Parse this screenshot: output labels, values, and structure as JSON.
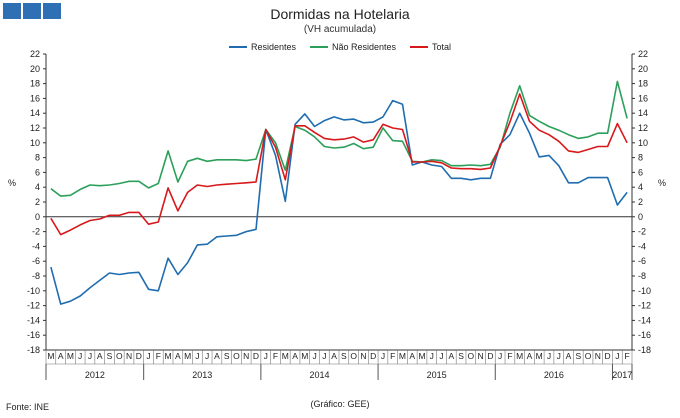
{
  "header": {
    "title": "Dormidas na Hotelaria",
    "subtitle": "(VH acumulada)"
  },
  "footer": {
    "source": "Fonte: INE",
    "credit": "(Gráfico: GEE)"
  },
  "colors": {
    "brand": "#2f6fb3",
    "residentes": "#1f6db0",
    "nao_residentes": "#2ca05a",
    "total": "#d7191c"
  },
  "chart_data": {
    "type": "line",
    "title": "Dormidas na Hotelaria",
    "subtitle": "(VH acumulada)",
    "ylabel": "%",
    "ylabel_right": "%",
    "ylim": [
      -18,
      22
    ],
    "yticks": [
      -18,
      -16,
      -14,
      -12,
      -10,
      -8,
      -6,
      -4,
      -2,
      0,
      2,
      4,
      6,
      8,
      10,
      12,
      14,
      16,
      18,
      20,
      22
    ],
    "grid": false,
    "legend_position": "top-center",
    "categories": [
      "M",
      "A",
      "M",
      "J",
      "J",
      "A",
      "S",
      "O",
      "N",
      "D",
      "J",
      "F",
      "M",
      "A",
      "M",
      "J",
      "J",
      "A",
      "S",
      "O",
      "N",
      "D",
      "J",
      "F",
      "M",
      "A",
      "M",
      "J",
      "J",
      "A",
      "S",
      "O",
      "N",
      "D",
      "J",
      "F",
      "M",
      "A",
      "M",
      "J",
      "J",
      "A",
      "S",
      "O",
      "N",
      "D",
      "J",
      "F",
      "M",
      "A",
      "M",
      "J",
      "J",
      "A",
      "S",
      "O",
      "N",
      "D",
      "J",
      "F"
    ],
    "years": [
      {
        "label": "2012",
        "start": 0,
        "end": 9
      },
      {
        "label": "2013",
        "start": 10,
        "end": 21
      },
      {
        "label": "2014",
        "start": 22,
        "end": 33
      },
      {
        "label": "2015",
        "start": 34,
        "end": 45
      },
      {
        "label": "2016",
        "start": 46,
        "end": 57
      },
      {
        "label": "2017",
        "start": 58,
        "end": 59
      }
    ],
    "series": [
      {
        "name": "Residentes",
        "color": "#1f6db0",
        "values": [
          -6.8,
          -11.8,
          -11.4,
          -10.7,
          -9.6,
          -8.6,
          -7.6,
          -7.8,
          -7.6,
          -7.5,
          -9.8,
          -10.0,
          -5.6,
          -7.8,
          -6.2,
          -3.8,
          -3.7,
          -2.7,
          -2.6,
          -2.5,
          -2.0,
          -1.7,
          11.8,
          8.3,
          2.1,
          12.5,
          13.9,
          12.2,
          13.0,
          13.5,
          13.1,
          13.2,
          12.7,
          12.8,
          13.5,
          15.7,
          15.2,
          7.0,
          7.4,
          7.0,
          6.8,
          5.2,
          5.2,
          5.0,
          5.2,
          5.2,
          9.8,
          11.1,
          14.0,
          11.3,
          8.1,
          8.3,
          6.9,
          4.6,
          4.6,
          5.3,
          5.3,
          5.3,
          1.6,
          3.3
        ]
      },
      {
        "name": "Não Residentes",
        "color": "#2ca05a",
        "values": [
          3.8,
          2.8,
          2.9,
          3.7,
          4.3,
          4.2,
          4.3,
          4.5,
          4.8,
          4.8,
          3.9,
          4.5,
          8.9,
          4.7,
          7.5,
          7.9,
          7.5,
          7.7,
          7.7,
          7.7,
          7.6,
          7.8,
          11.8,
          10.0,
          6.3,
          12.2,
          11.7,
          10.8,
          9.5,
          9.3,
          9.4,
          9.9,
          9.2,
          9.4,
          12.0,
          10.3,
          10.2,
          7.5,
          7.4,
          7.7,
          7.6,
          6.9,
          6.9,
          7.0,
          6.9,
          7.1,
          9.4,
          14.0,
          17.7,
          13.7,
          12.9,
          12.2,
          11.7,
          11.1,
          10.6,
          10.8,
          11.3,
          11.3,
          18.3,
          13.3
        ]
      },
      {
        "name": "Total",
        "color": "#d7191c",
        "values": [
          -0.2,
          -2.4,
          -1.8,
          -1.1,
          -0.5,
          -0.3,
          0.2,
          0.2,
          0.6,
          0.6,
          -1.0,
          -0.7,
          3.9,
          0.8,
          3.3,
          4.3,
          4.1,
          4.3,
          4.4,
          4.5,
          4.6,
          4.7,
          11.8,
          9.4,
          5.0,
          12.3,
          12.3,
          11.4,
          10.6,
          10.4,
          10.5,
          10.8,
          10.1,
          10.4,
          12.5,
          12.0,
          11.8,
          7.4,
          7.4,
          7.5,
          7.3,
          6.6,
          6.5,
          6.5,
          6.4,
          6.6,
          9.6,
          12.8,
          16.6,
          12.9,
          11.7,
          11.1,
          10.2,
          8.9,
          8.7,
          9.1,
          9.5,
          9.5,
          12.6,
          10.0
        ]
      }
    ]
  }
}
